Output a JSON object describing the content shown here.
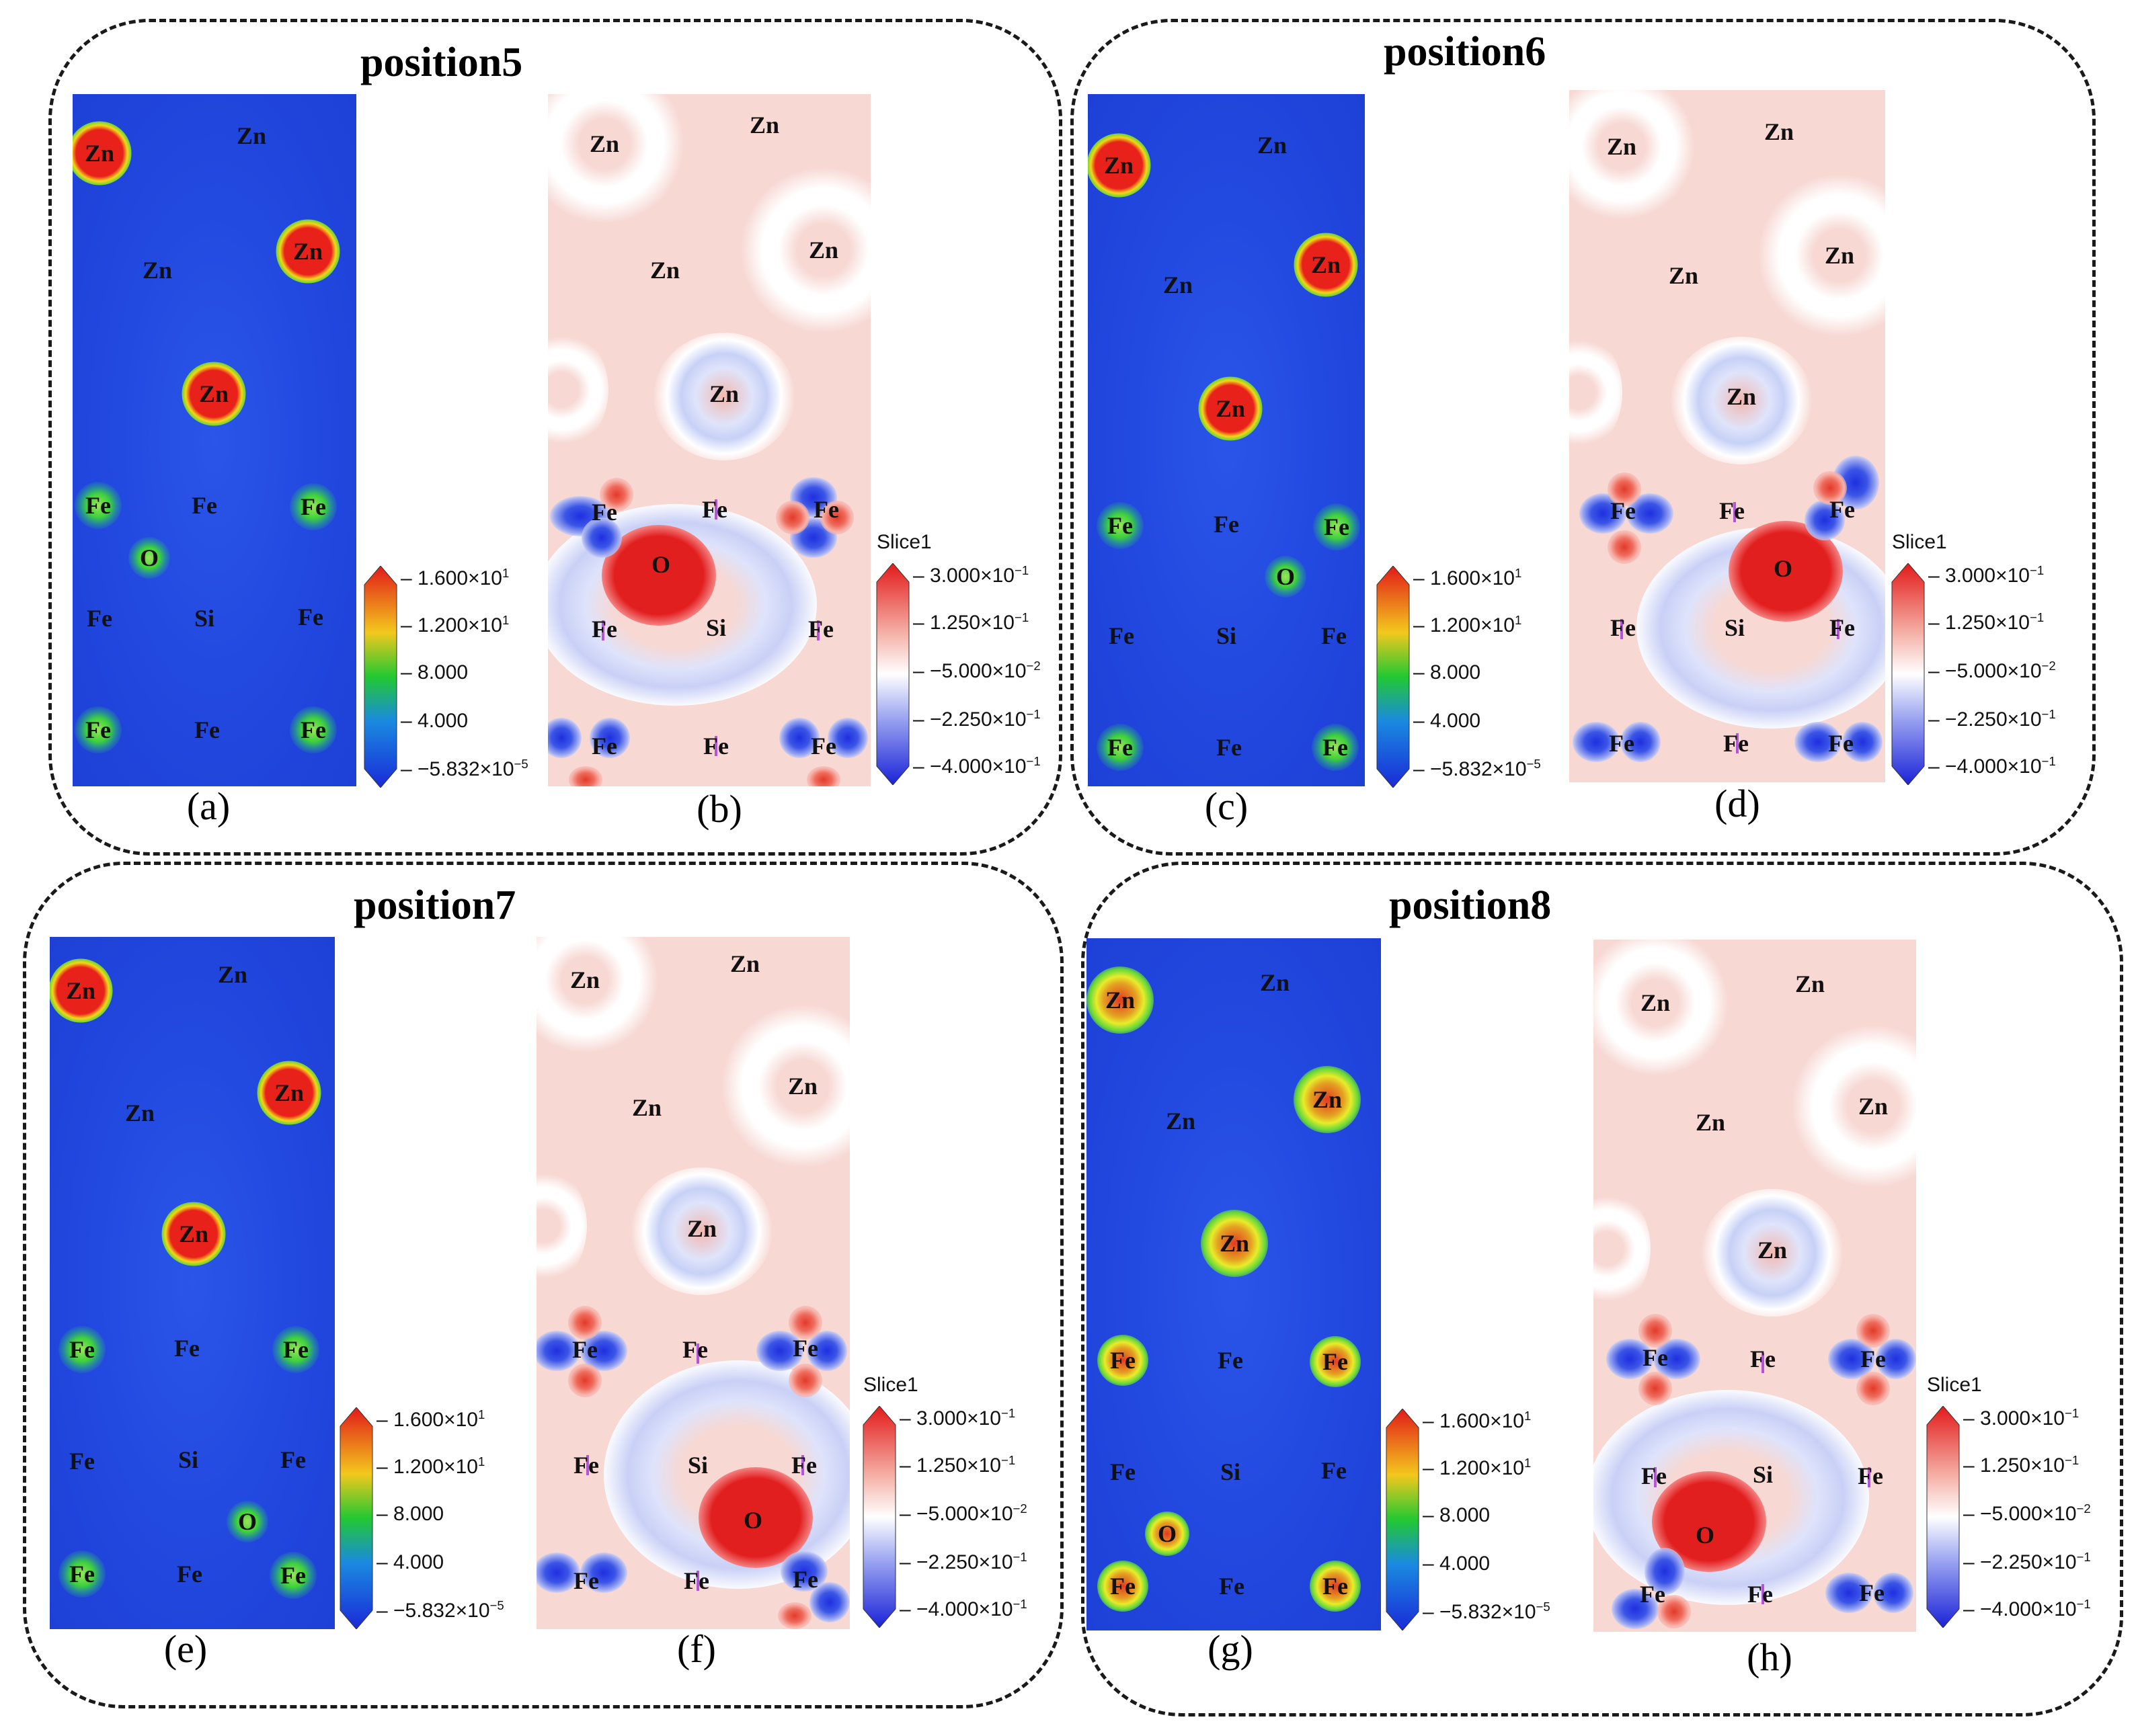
{
  "groups": [
    {
      "title": "position5",
      "captions": [
        "(a)",
        "(b)"
      ]
    },
    {
      "title": "position6",
      "captions": [
        "(c)",
        "(d)"
      ]
    },
    {
      "title": "position7",
      "captions": [
        "(e)",
        "(f)"
      ]
    },
    {
      "title": "position8",
      "captions": [
        "(g)",
        "(h)"
      ]
    }
  ],
  "atoms": {
    "zn": "Zn",
    "fe": "Fe",
    "si": "Si",
    "o": "O"
  },
  "density_scale": {
    "labels": [
      "1.600×10",
      "1.200×10",
      "8.000",
      "4.000",
      "−5.832×10"
    ],
    "exponents": [
      "1",
      "1",
      "",
      "",
      "−5"
    ],
    "colors": [
      "#e21a1a",
      "#f3c81c",
      "#22c832",
      "#1a8ae0",
      "#1a2ad8"
    ]
  },
  "diff_scale": {
    "title": "Slice1",
    "labels": [
      "3.000×10",
      "1.250×10",
      "−5.000×10",
      "−2.250×10",
      "−4.000×10"
    ],
    "exponents": [
      "−1",
      "−1",
      "−2",
      "−1",
      "−1"
    ],
    "colors": [
      "#e21a1a",
      "#f4aaa0",
      "#ffffff",
      "#9aa4f0",
      "#1a22d8"
    ]
  }
}
